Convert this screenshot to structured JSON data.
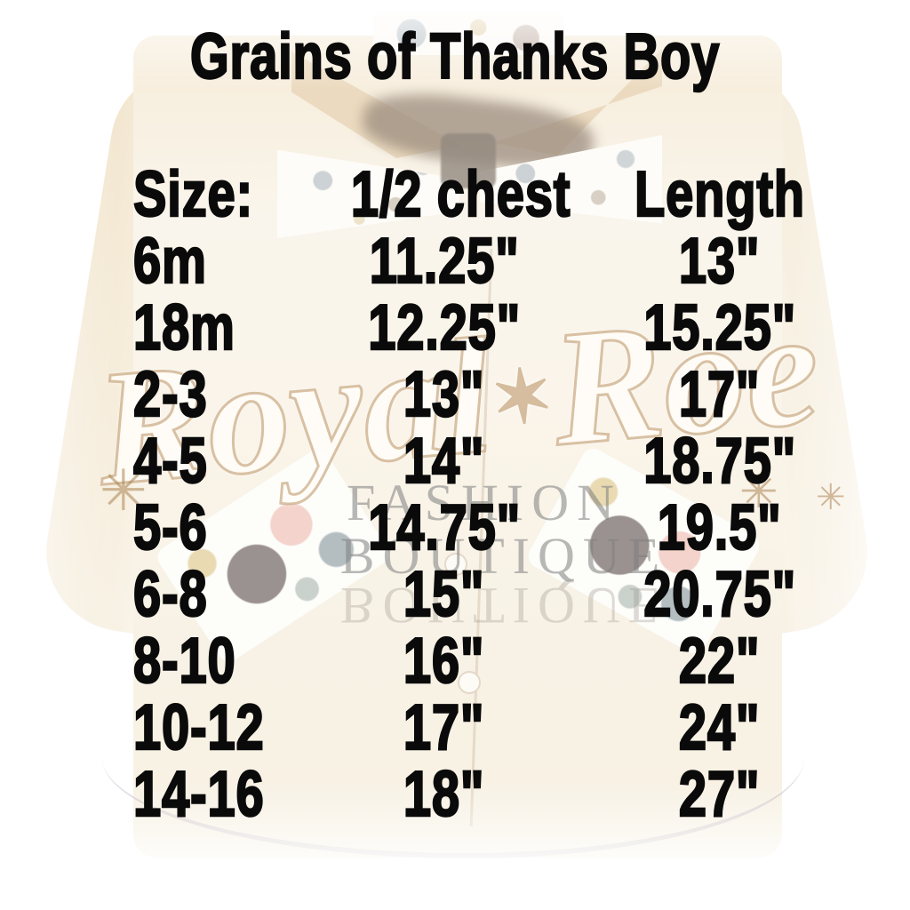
{
  "header": {
    "title": "Grains of Thanks Boy"
  },
  "chart_data": {
    "type": "table",
    "title": "Grains of Thanks Boy",
    "columns": [
      "Size:",
      "1/2 chest",
      "Length"
    ],
    "rows": [
      [
        "6m",
        "11.25\"",
        "13\""
      ],
      [
        "18m",
        "12.25\"",
        "15.25\""
      ],
      [
        "2-3",
        "13\"",
        "17\""
      ],
      [
        "4-5",
        "14\"",
        "18.75\""
      ],
      [
        "5-6",
        "14.75\"",
        "19.5\""
      ],
      [
        "6-8",
        "15\"",
        "20.75\""
      ],
      [
        "8-10",
        "16\"",
        "22\""
      ],
      [
        "10-12",
        "17\"",
        "24\""
      ],
      [
        "14-16",
        "18\"",
        "27\""
      ]
    ],
    "units": "inches",
    "layout_hints": {
      "size_column_align": "left",
      "measurement_columns_align": "center",
      "grid": "off"
    }
  },
  "watermark": {
    "script_word1": "Royal",
    "script_star": "✶",
    "script_word2": "Roe",
    "subtitle_line1": "FASHION",
    "subtitle_line2": "BOUTIQUE",
    "sparkle_glyph": "✳"
  },
  "background": {
    "description_colors": {
      "text_black": "#0a0a0a",
      "shirt_tan": "#f3e6cc",
      "collar_tan": "#dcbd8c",
      "collar_shadow_brown": "#4a2f15",
      "watermark_tan": "#ba9262",
      "watermark_gray": "#7d7d7d",
      "page_white": "#ffffff"
    }
  }
}
